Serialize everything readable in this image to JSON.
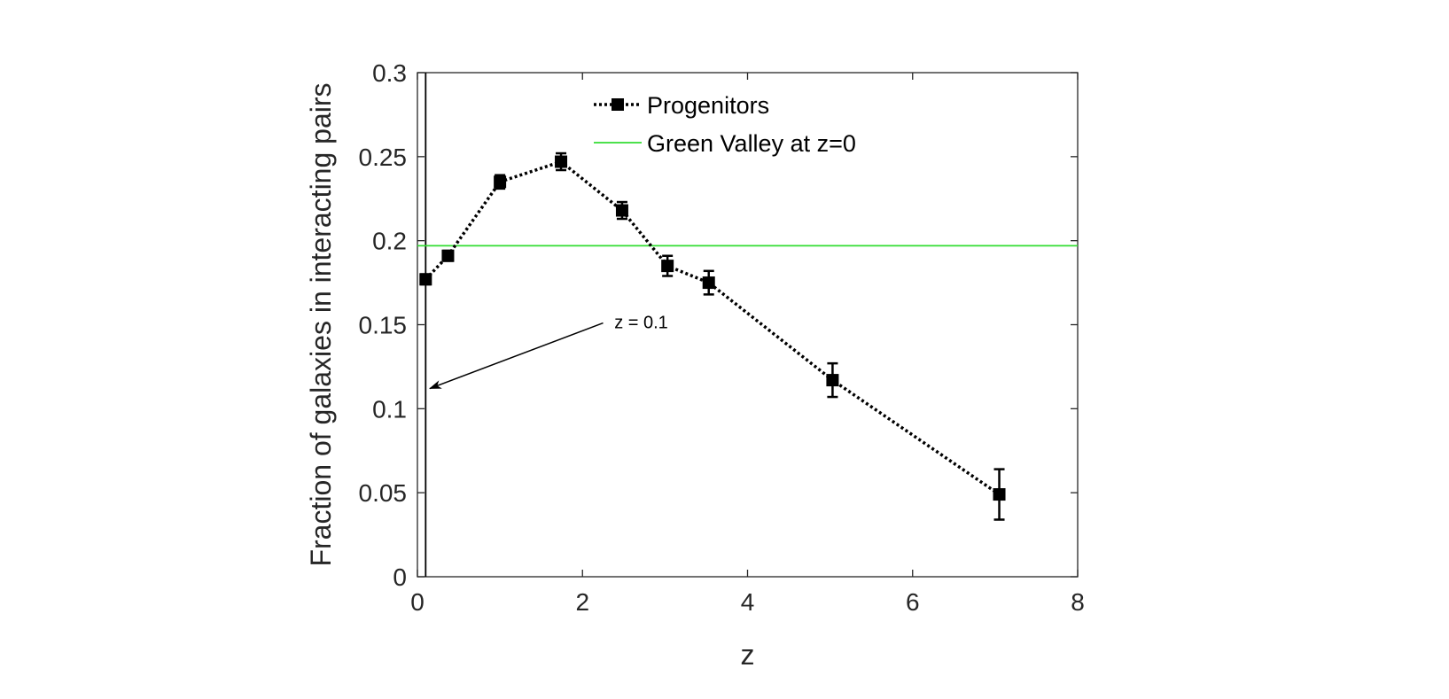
{
  "chart_data": {
    "type": "line",
    "xlabel": "z",
    "ylabel": "Fraction of galaxies in interacting pairs",
    "xlim": [
      0,
      8
    ],
    "ylim": [
      0,
      0.3
    ],
    "xticks": [
      0,
      2,
      4,
      6,
      8
    ],
    "xtick_labels": [
      "0",
      "2",
      "4",
      "6",
      "8"
    ],
    "yticks": [
      0,
      0.05,
      0.1,
      0.15,
      0.2,
      0.25,
      0.3
    ],
    "ytick_labels": [
      "0",
      "0.05",
      "0.1",
      "0.15",
      "0.2",
      "0.25",
      "0.3"
    ],
    "grid": false,
    "legend_placement": "top-center",
    "series": [
      {
        "name": "Progenitors",
        "style": "dotted",
        "marker": "square",
        "color": "#000000",
        "x": [
          0.1,
          0.37,
          1.0,
          1.74,
          2.48,
          3.03,
          3.53,
          5.03,
          7.05
        ],
        "y": [
          0.177,
          0.191,
          0.235,
          0.247,
          0.218,
          0.185,
          0.175,
          0.117,
          0.049
        ],
        "err": [
          0.003,
          0.003,
          0.004,
          0.005,
          0.005,
          0.006,
          0.007,
          0.01,
          0.015
        ]
      },
      {
        "name": "Green Valley at z=0",
        "style": "solid",
        "color": "#33dd33",
        "y": 0.197
      }
    ],
    "reference_line": {
      "x": 0.1
    },
    "annotations": [
      {
        "text": "z = 0.1",
        "text_x": 2.3,
        "text_y": 0.149,
        "arrow_to_x": 0.15,
        "arrow_to_y": 0.112,
        "arrow_from_x": 2.25,
        "arrow_from_y": 0.151
      }
    ]
  }
}
